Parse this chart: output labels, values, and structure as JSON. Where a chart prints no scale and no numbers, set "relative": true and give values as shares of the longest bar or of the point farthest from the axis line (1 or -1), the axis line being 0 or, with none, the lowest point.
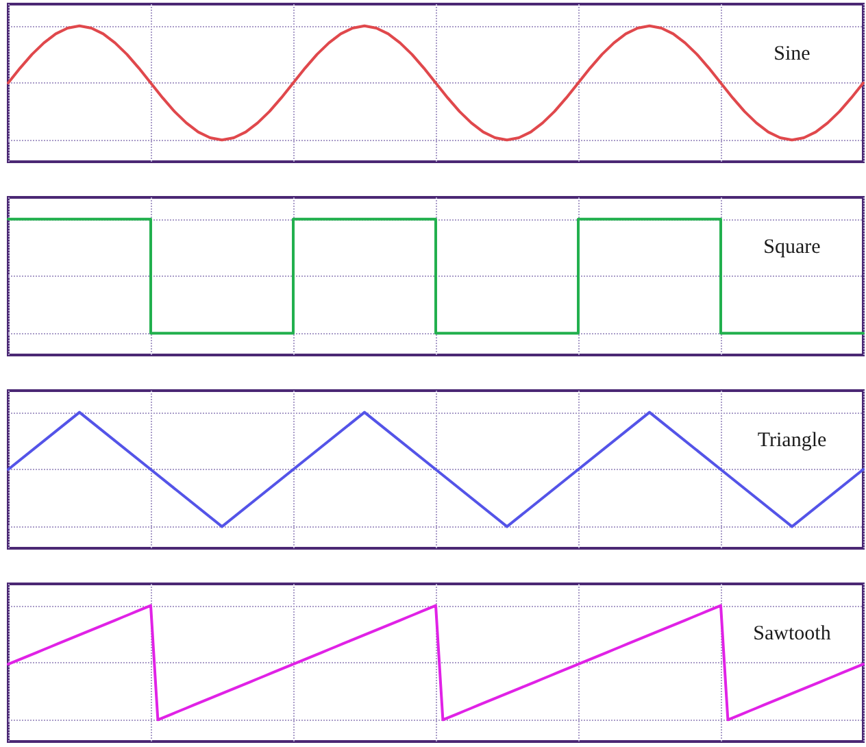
{
  "chart_data": [
    {
      "type": "line",
      "title": "Sine",
      "relative": true,
      "grid": true,
      "tick_labels": false,
      "marker": "none",
      "line_style": "solid",
      "color": "#e0484c",
      "categories": [
        null,
        null,
        null,
        null,
        null,
        null,
        null,
        null,
        null,
        null,
        null,
        null,
        null,
        null,
        null,
        null,
        null,
        null,
        null,
        null,
        null,
        null,
        null,
        null,
        null,
        null,
        null,
        null,
        null,
        null,
        null,
        null,
        null,
        null,
        null,
        null,
        null,
        null,
        null,
        null,
        null,
        null,
        null,
        null,
        null,
        null,
        null,
        null,
        null,
        null,
        null,
        null,
        null,
        null,
        null,
        null,
        null,
        null,
        null,
        null,
        null,
        null,
        null,
        null,
        null,
        null,
        null,
        null,
        null,
        null,
        null,
        null,
        null
      ],
      "values": [
        0.5,
        0.63,
        0.75,
        0.85,
        0.93,
        0.98,
        1,
        0.98,
        0.93,
        0.85,
        0.75,
        0.63,
        0.5,
        0.37,
        0.25,
        0.15,
        0.07,
        0.02,
        0,
        0.02,
        0.07,
        0.15,
        0.25,
        0.37,
        0.5,
        0.63,
        0.75,
        0.85,
        0.93,
        0.98,
        1,
        0.98,
        0.93,
        0.85,
        0.75,
        0.63,
        0.5,
        0.37,
        0.25,
        0.15,
        0.07,
        0.02,
        0,
        0.02,
        0.07,
        0.15,
        0.25,
        0.37,
        0.5,
        0.63,
        0.75,
        0.85,
        0.93,
        0.98,
        1,
        0.98,
        0.93,
        0.85,
        0.75,
        0.63,
        0.5,
        0.37,
        0.25,
        0.15,
        0.07,
        0.02,
        0,
        0.02,
        0.07,
        0.15,
        0.25,
        0.37,
        0.5
      ]
    },
    {
      "type": "step",
      "title": "Square",
      "relative": true,
      "grid": true,
      "tick_labels": false,
      "marker": "none",
      "line_style": "solid",
      "color": "#22b04e",
      "categories": [
        null,
        null,
        null,
        null,
        null,
        null,
        null
      ],
      "values": [
        1,
        0,
        1,
        0,
        1,
        0,
        0
      ]
    },
    {
      "type": "line",
      "title": "Triangle",
      "relative": true,
      "grid": true,
      "tick_labels": false,
      "marker": "none",
      "line_style": "solid",
      "color": "#5454e8",
      "categories": [
        null,
        null,
        null,
        null,
        null,
        null,
        null,
        null,
        null,
        null,
        null,
        null,
        null
      ],
      "values": [
        0.5,
        1,
        0.5,
        0,
        0.5,
        1,
        0.5,
        0,
        0.5,
        1,
        0.5,
        0,
        0.5
      ]
    },
    {
      "type": "line",
      "title": "Sawtooth",
      "relative": true,
      "grid": true,
      "tick_labels": false,
      "marker": "none",
      "line_style": "solid",
      "color": "#e022e6",
      "categories": [
        null,
        null,
        null,
        null,
        null,
        null,
        null,
        null,
        null,
        null,
        null,
        null,
        null,
        null,
        null,
        null,
        null,
        null,
        null,
        null,
        null,
        null,
        null,
        null,
        null,
        null,
        null,
        null,
        null,
        null,
        null,
        null,
        null,
        null,
        null,
        null,
        null,
        null,
        null,
        null,
        null,
        null,
        null,
        null,
        null,
        null,
        null,
        null,
        null,
        null,
        null,
        null,
        null,
        null,
        null,
        null,
        null,
        null,
        null,
        null,
        null,
        null,
        null,
        null,
        null,
        null,
        null,
        null,
        null,
        null,
        null,
        null,
        null,
        null,
        null,
        null,
        null,
        null,
        null,
        null,
        null,
        null,
        null,
        null,
        null,
        null,
        null,
        null,
        null,
        null,
        null,
        null,
        null,
        null,
        null,
        null,
        null,
        null,
        null,
        null,
        null,
        null,
        null,
        null,
        null,
        null,
        null,
        null,
        null,
        null,
        null,
        null,
        null,
        null,
        null,
        null,
        null,
        null,
        null,
        null,
        null
      ],
      "values": [
        0.5,
        0.525,
        0.55,
        0.575,
        0.6,
        0.625,
        0.65,
        0.675,
        0.7,
        0.725,
        0.75,
        0.775,
        0.8,
        0.825,
        0.85,
        0.875,
        0.9,
        0.925,
        0.95,
        0.975,
        1,
        0.025,
        0.05,
        0.075,
        0.1,
        0.125,
        0.15,
        0.175,
        0.2,
        0.225,
        0.25,
        0.275,
        0.3,
        0.325,
        0.35,
        0.375,
        0.4,
        0.425,
        0.45,
        0.475,
        0.5,
        0.525,
        0.55,
        0.575,
        0.6,
        0.625,
        0.65,
        0.675,
        0.7,
        0.725,
        0.75,
        0.775,
        0.8,
        0.825,
        0.85,
        0.875,
        0.9,
        0.925,
        0.95,
        0.975,
        1,
        0.025,
        0.05,
        0.075,
        0.1,
        0.125,
        0.15,
        0.175,
        0.2,
        0.225,
        0.25,
        0.275,
        0.3,
        0.325,
        0.35,
        0.375,
        0.4,
        0.425,
        0.45,
        0.475,
        0.5,
        0.525,
        0.55,
        0.575,
        0.6,
        0.625,
        0.65,
        0.675,
        0.7,
        0.725,
        0.75,
        0.775,
        0.8,
        0.825,
        0.85,
        0.875,
        0.9,
        0.925,
        0.95,
        0.975,
        1,
        0.025,
        0.05,
        0.075,
        0.1,
        0.125,
        0.15,
        0.175,
        0.2,
        0.225,
        0.25,
        0.275,
        0.3,
        0.325,
        0.35,
        0.375,
        0.4,
        0.425,
        0.45,
        0.475,
        0.5
      ]
    }
  ]
}
